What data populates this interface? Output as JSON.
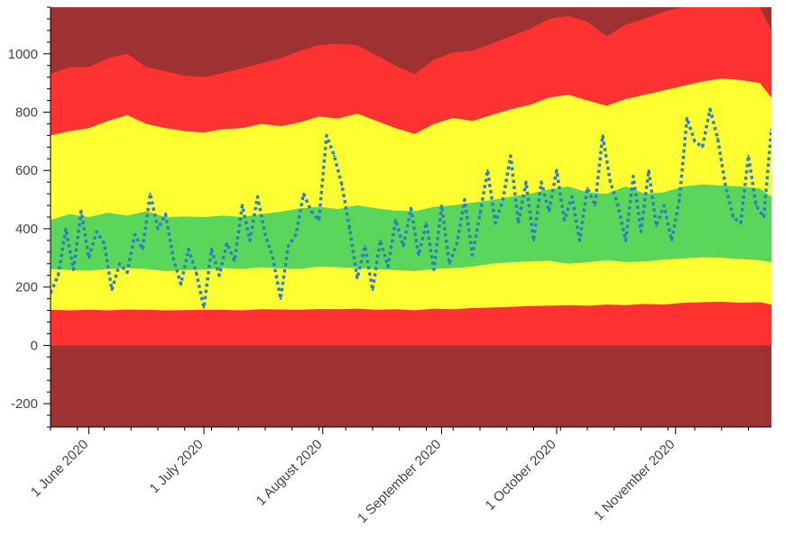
{
  "chart_data": {
    "type": "area",
    "title": "",
    "xlabel": "",
    "ylabel": "",
    "xlim": [
      "2020-05-22",
      "2020-11-26"
    ],
    "ylim": [
      -280,
      1160
    ],
    "y_ticks": [
      -200,
      0,
      200,
      400,
      600,
      800,
      1000
    ],
    "y_tick_labels": [
      "-200",
      "0",
      "200",
      "400",
      "600",
      "800",
      "1000"
    ],
    "x_ticks": [
      "2020-06-01",
      "2020-07-01",
      "2020-08-01",
      "2020-09-01",
      "2020-10-01",
      "2020-11-01"
    ],
    "x_tick_labels": [
      "1 June 2020",
      "1 July 2020",
      "1 August 2020",
      "1 September 2020",
      "1 October 2020",
      "1 November 2020"
    ],
    "grid": false,
    "legend": "none",
    "colors": {
      "outer": "#9e3131",
      "red": "#ff3232",
      "yellow": "#ffff32",
      "green": "#5ad65a",
      "line": "#2e7fc0"
    },
    "bands": [
      {
        "fill": "outer",
        "lower": "bottom",
        "upper": "top"
      },
      {
        "fill": "red",
        "lower": "zero",
        "upper": "red_top"
      },
      {
        "fill": "yellow",
        "lower": "red_bottom",
        "upper": "yellow_top"
      },
      {
        "fill": "green",
        "lower": "yellow_bottom",
        "upper": "green_top"
      }
    ],
    "band_x": [
      "2020-05-22",
      "2020-05-27",
      "2020-06-01",
      "2020-06-06",
      "2020-06-11",
      "2020-06-16",
      "2020-06-21",
      "2020-06-26",
      "2020-07-01",
      "2020-07-06",
      "2020-07-11",
      "2020-07-16",
      "2020-07-21",
      "2020-07-26",
      "2020-07-31",
      "2020-08-05",
      "2020-08-10",
      "2020-08-15",
      "2020-08-20",
      "2020-08-25",
      "2020-08-30",
      "2020-09-04",
      "2020-09-09",
      "2020-09-14",
      "2020-09-19",
      "2020-09-24",
      "2020-09-29",
      "2020-10-04",
      "2020-10-09",
      "2020-10-14",
      "2020-10-19",
      "2020-10-24",
      "2020-10-29",
      "2020-11-03",
      "2020-11-08",
      "2020-11-13",
      "2020-11-18",
      "2020-11-23",
      "2020-11-26"
    ],
    "red_bottom": [
      122,
      120,
      122,
      120,
      123,
      122,
      120,
      121,
      122,
      122,
      120,
      124,
      123,
      122,
      125,
      124,
      126,
      122,
      124,
      120,
      126,
      124,
      128,
      130,
      132,
      135,
      136,
      138,
      136,
      140,
      138,
      142,
      140,
      146,
      148,
      150,
      146,
      148,
      140
    ],
    "yellow_bottom": [
      262,
      258,
      256,
      262,
      265,
      262,
      255,
      258,
      260,
      265,
      262,
      268,
      264,
      262,
      270,
      268,
      265,
      262,
      258,
      255,
      262,
      265,
      270,
      280,
      285,
      288,
      290,
      280,
      285,
      292,
      286,
      288,
      294,
      298,
      302,
      300,
      296,
      292,
      285
    ],
    "green_top": [
      430,
      450,
      440,
      455,
      445,
      460,
      440,
      442,
      440,
      445,
      440,
      450,
      458,
      470,
      475,
      468,
      480,
      470,
      462,
      460,
      475,
      480,
      490,
      498,
      510,
      520,
      535,
      545,
      525,
      520,
      545,
      520,
      525,
      545,
      552,
      548,
      545,
      538,
      510
    ],
    "yellow_top": [
      720,
      735,
      745,
      770,
      790,
      760,
      745,
      735,
      730,
      742,
      745,
      760,
      752,
      765,
      785,
      778,
      795,
      770,
      745,
      725,
      760,
      780,
      770,
      790,
      810,
      825,
      850,
      860,
      840,
      822,
      845,
      860,
      875,
      890,
      905,
      915,
      910,
      900,
      850
    ],
    "red_top": [
      930,
      955,
      955,
      985,
      1000,
      955,
      940,
      925,
      920,
      935,
      950,
      968,
      985,
      1010,
      1030,
      1035,
      1030,
      995,
      960,
      930,
      980,
      1005,
      1010,
      1035,
      1060,
      1085,
      1120,
      1130,
      1110,
      1060,
      1100,
      1120,
      1145,
      1160,
      1160,
      1160,
      1160,
      1160,
      1080
    ],
    "series": [
      {
        "style": "dotted",
        "x": [
          "2020-05-22",
          "2020-05-24",
          "2020-05-26",
          "2020-05-28",
          "2020-05-30",
          "2020-06-01",
          "2020-06-03",
          "2020-06-05",
          "2020-06-07",
          "2020-06-09",
          "2020-06-11",
          "2020-06-13",
          "2020-06-15",
          "2020-06-17",
          "2020-06-19",
          "2020-06-21",
          "2020-06-23",
          "2020-06-25",
          "2020-06-27",
          "2020-06-29",
          "2020-07-01",
          "2020-07-03",
          "2020-07-05",
          "2020-07-07",
          "2020-07-09",
          "2020-07-11",
          "2020-07-13",
          "2020-07-15",
          "2020-07-17",
          "2020-07-19",
          "2020-07-21",
          "2020-07-23",
          "2020-07-25",
          "2020-07-27",
          "2020-07-29",
          "2020-07-31",
          "2020-08-02",
          "2020-08-04",
          "2020-08-06",
          "2020-08-08",
          "2020-08-10",
          "2020-08-12",
          "2020-08-14",
          "2020-08-16",
          "2020-08-18",
          "2020-08-20",
          "2020-08-22",
          "2020-08-24",
          "2020-08-26",
          "2020-08-28",
          "2020-08-30",
          "2020-09-01",
          "2020-09-03",
          "2020-09-05",
          "2020-09-07",
          "2020-09-09",
          "2020-09-11",
          "2020-09-13",
          "2020-09-15",
          "2020-09-17",
          "2020-09-19",
          "2020-09-21",
          "2020-09-23",
          "2020-09-25",
          "2020-09-27",
          "2020-09-29",
          "2020-10-01",
          "2020-10-03",
          "2020-10-05",
          "2020-10-07",
          "2020-10-09",
          "2020-10-11",
          "2020-10-13",
          "2020-10-15",
          "2020-10-17",
          "2020-10-19",
          "2020-10-21",
          "2020-10-23",
          "2020-10-25",
          "2020-10-27",
          "2020-10-29",
          "2020-10-31",
          "2020-11-02",
          "2020-11-04",
          "2020-11-06",
          "2020-11-08",
          "2020-11-10",
          "2020-11-12",
          "2020-11-14",
          "2020-11-16",
          "2020-11-18",
          "2020-11-20",
          "2020-11-22",
          "2020-11-24",
          "2020-11-26"
        ],
        "values": [
          180,
          240,
          400,
          260,
          460,
          300,
          390,
          350,
          190,
          280,
          250,
          380,
          330,
          520,
          400,
          450,
          300,
          210,
          330,
          250,
          130,
          330,
          240,
          350,
          290,
          480,
          360,
          510,
          380,
          300,
          160,
          340,
          380,
          520,
          460,
          430,
          720,
          650,
          550,
          400,
          230,
          340,
          190,
          360,
          270,
          430,
          340,
          470,
          310,
          420,
          260,
          480,
          280,
          350,
          500,
          310,
          450,
          600,
          420,
          500,
          650,
          420,
          560,
          360,
          560,
          460,
          600,
          430,
          510,
          360,
          540,
          480,
          720,
          560,
          480,
          360,
          580,
          390,
          600,
          410,
          480,
          360,
          500,
          780,
          700,
          680,
          810,
          710,
          550,
          440,
          420,
          650,
          480,
          440,
          740
        ]
      }
    ]
  }
}
